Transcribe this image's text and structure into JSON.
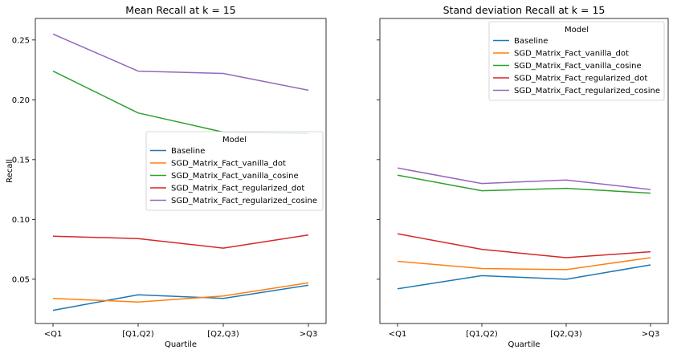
{
  "chart_data": [
    {
      "type": "line",
      "title": "Mean Recall at k = 15",
      "xlabel": "Quartile",
      "ylabel": "Recall",
      "categories": [
        "<Q1",
        "[Q1,Q2)",
        "[Q2,Q3)",
        ">Q3"
      ],
      "ylim": [
        0.013,
        0.268
      ],
      "yticks": [
        0.05,
        0.1,
        0.15,
        0.2,
        0.25
      ],
      "ytick_labels": [
        "0.05",
        "0.10",
        "0.15",
        "0.20",
        "0.25"
      ],
      "grid": false,
      "legend": {
        "title": "Model",
        "placement": "center-right"
      },
      "series": [
        {
          "name": "Baseline",
          "color": "#1f77b4",
          "values": [
            0.024,
            0.037,
            0.034,
            0.045
          ]
        },
        {
          "name": "SGD_Matrix_Fact_vanilla_dot",
          "color": "#ff7f0e",
          "values": [
            0.034,
            0.031,
            0.036,
            0.047
          ]
        },
        {
          "name": "SGD_Matrix_Fact_vanilla_cosine",
          "color": "#2ca02c",
          "values": [
            0.224,
            0.189,
            0.173,
            0.172
          ]
        },
        {
          "name": "SGD_Matrix_Fact_regularized_dot",
          "color": "#d62728",
          "values": [
            0.086,
            0.084,
            0.076,
            0.087
          ]
        },
        {
          "name": "SGD_Matrix_Fact_regularized_cosine",
          "color": "#9467bd",
          "values": [
            0.255,
            0.224,
            0.222,
            0.208
          ]
        }
      ]
    },
    {
      "type": "line",
      "title": "Stand deviation Recall at k = 15",
      "xlabel": "Quartile",
      "ylabel": "",
      "categories": [
        "<Q1",
        "[Q1,Q2)",
        "[Q2,Q3)",
        ">Q3"
      ],
      "ylim": [
        0.013,
        0.268
      ],
      "grid": false,
      "legend": {
        "title": "Model",
        "placement": "top-right"
      },
      "series": [
        {
          "name": "Baseline",
          "color": "#1f77b4",
          "values": [
            0.042,
            0.053,
            0.05,
            0.062
          ]
        },
        {
          "name": "SGD_Matrix_Fact_vanilla_dot",
          "color": "#ff7f0e",
          "values": [
            0.065,
            0.059,
            0.058,
            0.068
          ]
        },
        {
          "name": "SGD_Matrix_Fact_vanilla_cosine",
          "color": "#2ca02c",
          "values": [
            0.137,
            0.124,
            0.126,
            0.122
          ]
        },
        {
          "name": "SGD_Matrix_Fact_regularized_dot",
          "color": "#d62728",
          "values": [
            0.088,
            0.075,
            0.068,
            0.073
          ]
        },
        {
          "name": "SGD_Matrix_Fact_regularized_cosine",
          "color": "#9467bd",
          "values": [
            0.143,
            0.13,
            0.133,
            0.125
          ]
        }
      ]
    }
  ]
}
